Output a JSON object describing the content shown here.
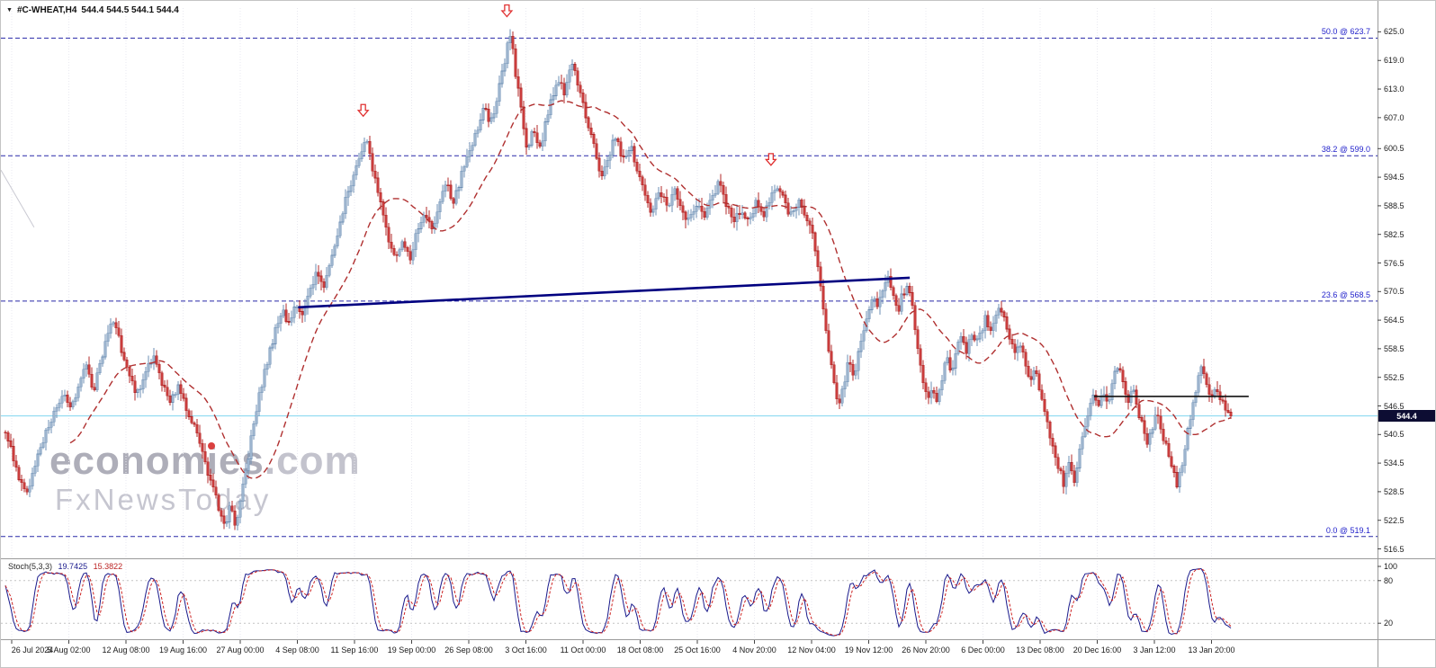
{
  "header": {
    "symbol": "#C-WHEAT,H4",
    "ohlc_text": "544.4 544.5 544.1 544.4",
    "ohlc": {
      "open": "544.4",
      "high": "544.5",
      "low": "544.1",
      "close": "544.4"
    }
  },
  "icons": {
    "symbol_dropdown": "▼"
  },
  "watermark": {
    "brand_pre": "econom",
    "brand_i": "i",
    "brand_post": "es",
    "brand_tld": ".com",
    "subtitle": "FxNewsToday"
  },
  "price_axis": [
    "625.0",
    "619.0",
    "613.0",
    "607.0",
    "600.5",
    "594.5",
    "588.5",
    "582.5",
    "576.5",
    "570.5",
    "564.5",
    "558.5",
    "552.5",
    "546.5",
    "540.5",
    "534.5",
    "528.5",
    "522.5",
    "516.5"
  ],
  "time_axis": [
    "26 Jul 2024",
    "5 Aug 02:00",
    "12 Aug 08:00",
    "19 Aug 16:00",
    "27 Aug 00:00",
    "4 Sep 08:00",
    "11 Sep 16:00",
    "19 Sep 00:00",
    "26 Sep 08:00",
    "3 Oct 16:00",
    "11 Oct 00:00",
    "18 Oct 08:00",
    "25 Oct 16:00",
    "4 Nov 20:00",
    "12 Nov 04:00",
    "19 Nov 12:00",
    "26 Nov 20:00",
    "6 Dec 00:00",
    "13 Dec 08:00",
    "20 Dec 16:00",
    "3 Jan 12:00",
    "13 Jan 20:00"
  ],
  "stoch_panel": {
    "name": "Stoch(5,3,3)",
    "main_value": "19.7425",
    "signal_value": "15.3822",
    "axis": [
      "100",
      "80",
      "20"
    ],
    "levels": [
      80,
      20
    ]
  },
  "current_price": {
    "value": "544.4",
    "price": 544.4
  },
  "colors": {
    "bull": "#cbdae9",
    "bull_border": "#6e8fb4",
    "bear": "#e05050",
    "bear_border": "#b32828",
    "ma": "#b03030",
    "fib": "#2828a8",
    "fib_label": "#2323cc",
    "trend": "#000080",
    "hline": "#111111",
    "bid_line": "#7fd4ef",
    "bid_tag_bg": "#0d0d33",
    "stoch_main": "#1a1a8c",
    "stoch_signal": "#cc2222",
    "grid": "#e9e9f0",
    "sep": "#9a9a9a",
    "axis_text": "#1a1a1a",
    "arrow": "#e03030",
    "watermark": "#aeaeb9"
  },
  "chart_data": {
    "type": "candlestick",
    "symbol": "#C-WHEAT",
    "timeframe": "H4",
    "title": "#C-WHEAT,H4 544.4 544.5 544.1 544.4",
    "visible_range": {
      "start": "26 Jul 2024",
      "end": "13 Jan 20:00"
    },
    "ylim": [
      516.5,
      631.5
    ],
    "last_close": 544.4,
    "price_path_keypoints": [
      [
        0.0,
        541
      ],
      [
        0.006,
        536
      ],
      [
        0.012,
        531
      ],
      [
        0.018,
        529
      ],
      [
        0.025,
        535
      ],
      [
        0.032,
        540
      ],
      [
        0.04,
        545
      ],
      [
        0.047,
        549
      ],
      [
        0.053,
        546
      ],
      [
        0.06,
        551
      ],
      [
        0.066,
        555
      ],
      [
        0.072,
        550
      ],
      [
        0.078,
        556
      ],
      [
        0.084,
        562
      ],
      [
        0.089,
        565
      ],
      [
        0.094,
        559
      ],
      [
        0.1,
        553
      ],
      [
        0.107,
        549
      ],
      [
        0.114,
        553
      ],
      [
        0.121,
        557
      ],
      [
        0.128,
        551
      ],
      [
        0.135,
        547
      ],
      [
        0.141,
        551
      ],
      [
        0.148,
        546
      ],
      [
        0.154,
        542
      ],
      [
        0.16,
        537
      ],
      [
        0.167,
        531
      ],
      [
        0.173,
        526
      ],
      [
        0.179,
        521
      ],
      [
        0.184,
        526
      ],
      [
        0.188,
        521
      ],
      [
        0.192,
        527
      ],
      [
        0.197,
        534
      ],
      [
        0.202,
        542
      ],
      [
        0.208,
        550
      ],
      [
        0.214,
        556
      ],
      [
        0.22,
        562
      ],
      [
        0.226,
        567
      ],
      [
        0.231,
        563
      ],
      [
        0.236,
        568
      ],
      [
        0.242,
        565
      ],
      [
        0.248,
        570
      ],
      [
        0.254,
        575
      ],
      [
        0.259,
        571
      ],
      [
        0.265,
        577
      ],
      [
        0.271,
        583
      ],
      [
        0.277,
        589
      ],
      [
        0.283,
        594
      ],
      [
        0.289,
        599
      ],
      [
        0.295,
        603
      ],
      [
        0.3,
        596
      ],
      [
        0.306,
        589
      ],
      [
        0.312,
        582
      ],
      [
        0.318,
        577
      ],
      [
        0.324,
        581
      ],
      [
        0.33,
        577
      ],
      [
        0.336,
        583
      ],
      [
        0.342,
        587
      ],
      [
        0.348,
        583
      ],
      [
        0.354,
        589
      ],
      [
        0.36,
        593
      ],
      [
        0.366,
        589
      ],
      [
        0.372,
        595
      ],
      [
        0.378,
        600
      ],
      [
        0.384,
        604
      ],
      [
        0.39,
        609
      ],
      [
        0.396,
        606
      ],
      [
        0.402,
        612
      ],
      [
        0.407,
        618
      ],
      [
        0.412,
        625
      ],
      [
        0.416,
        617
      ],
      [
        0.421,
        608
      ],
      [
        0.426,
        600
      ],
      [
        0.431,
        605
      ],
      [
        0.436,
        600
      ],
      [
        0.441,
        606
      ],
      [
        0.446,
        611
      ],
      [
        0.451,
        615
      ],
      [
        0.457,
        612
      ],
      [
        0.462,
        619
      ],
      [
        0.468,
        613
      ],
      [
        0.474,
        607
      ],
      [
        0.48,
        601
      ],
      [
        0.486,
        595
      ],
      [
        0.492,
        599
      ],
      [
        0.498,
        603
      ],
      [
        0.504,
        598
      ],
      [
        0.51,
        601
      ],
      [
        0.516,
        596
      ],
      [
        0.522,
        591
      ],
      [
        0.528,
        587
      ],
      [
        0.534,
        592
      ],
      [
        0.54,
        588
      ],
      [
        0.546,
        592
      ],
      [
        0.552,
        588
      ],
      [
        0.558,
        585
      ],
      [
        0.564,
        589
      ],
      [
        0.57,
        586
      ],
      [
        0.576,
        590
      ],
      [
        0.582,
        593
      ],
      [
        0.588,
        589
      ],
      [
        0.594,
        585
      ],
      [
        0.6,
        588
      ],
      [
        0.606,
        585
      ],
      [
        0.612,
        589
      ],
      [
        0.618,
        586
      ],
      [
        0.624,
        590
      ],
      [
        0.63,
        593
      ],
      [
        0.636,
        589
      ],
      [
        0.642,
        586
      ],
      [
        0.648,
        590
      ],
      [
        0.654,
        586
      ],
      [
        0.66,
        581
      ],
      [
        0.664,
        574
      ],
      [
        0.668,
        566
      ],
      [
        0.672,
        558
      ],
      [
        0.676,
        551
      ],
      [
        0.68,
        546
      ],
      [
        0.684,
        551
      ],
      [
        0.688,
        556
      ],
      [
        0.692,
        552
      ],
      [
        0.696,
        557
      ],
      [
        0.7,
        562
      ],
      [
        0.704,
        566
      ],
      [
        0.708,
        570
      ],
      [
        0.712,
        567
      ],
      [
        0.716,
        571
      ],
      [
        0.72,
        574
      ],
      [
        0.724,
        570
      ],
      [
        0.728,
        566
      ],
      [
        0.732,
        570
      ],
      [
        0.736,
        572
      ],
      [
        0.74,
        567
      ],
      [
        0.744,
        560
      ],
      [
        0.748,
        553
      ],
      [
        0.752,
        548
      ],
      [
        0.756,
        551
      ],
      [
        0.76,
        547
      ],
      [
        0.764,
        552
      ],
      [
        0.768,
        557
      ],
      [
        0.772,
        553
      ],
      [
        0.776,
        558
      ],
      [
        0.78,
        561
      ],
      [
        0.784,
        558
      ],
      [
        0.788,
        561
      ],
      [
        0.792,
        559
      ],
      [
        0.796,
        562
      ],
      [
        0.8,
        565
      ],
      [
        0.804,
        562
      ],
      [
        0.808,
        565
      ],
      [
        0.812,
        567
      ],
      [
        0.816,
        564
      ],
      [
        0.82,
        560
      ],
      [
        0.824,
        557
      ],
      [
        0.828,
        560
      ],
      [
        0.832,
        556
      ],
      [
        0.836,
        552
      ],
      [
        0.84,
        555
      ],
      [
        0.844,
        550
      ],
      [
        0.848,
        545
      ],
      [
        0.852,
        541
      ],
      [
        0.856,
        537
      ],
      [
        0.86,
        533
      ],
      [
        0.864,
        530
      ],
      [
        0.868,
        534
      ],
      [
        0.872,
        531
      ],
      [
        0.876,
        536
      ],
      [
        0.88,
        541
      ],
      [
        0.884,
        546
      ],
      [
        0.888,
        549
      ],
      [
        0.892,
        546
      ],
      [
        0.896,
        550
      ],
      [
        0.9,
        547
      ],
      [
        0.904,
        552
      ],
      [
        0.908,
        555
      ],
      [
        0.912,
        551
      ],
      [
        0.916,
        547
      ],
      [
        0.92,
        551
      ],
      [
        0.924,
        546
      ],
      [
        0.928,
        542
      ],
      [
        0.932,
        538
      ],
      [
        0.936,
        542
      ],
      [
        0.94,
        545
      ],
      [
        0.944,
        541
      ],
      [
        0.948,
        537
      ],
      [
        0.952,
        533
      ],
      [
        0.956,
        530
      ],
      [
        0.96,
        534
      ],
      [
        0.964,
        540
      ],
      [
        0.968,
        546
      ],
      [
        0.972,
        551
      ],
      [
        0.976,
        555
      ],
      [
        0.98,
        552
      ],
      [
        0.984,
        548
      ],
      [
        0.988,
        551
      ],
      [
        0.992,
        548
      ],
      [
        0.996,
        545
      ],
      [
        1.0,
        544.4
      ]
    ],
    "moving_average": {
      "type": "SMA-dashed",
      "approx_period": 24,
      "color": "#b03030"
    },
    "fibonacci_levels": [
      {
        "label": "50.0 @ 623.7",
        "ratio": "50.0",
        "price": 623.7
      },
      {
        "label": "38.2 @ 599.0",
        "ratio": "38.2",
        "price": 599.0
      },
      {
        "label": "23.6 @ 568.5",
        "ratio": "23.6",
        "price": 568.5
      },
      {
        "label": "0.0 @ 519.1",
        "ratio": "0.0",
        "price": 519.1
      }
    ],
    "trendline": {
      "from": {
        "time_frac": 0.242,
        "price": 567.2
      },
      "to": {
        "time_frac": 0.74,
        "price": 573.4
      }
    },
    "horizontal_segment": {
      "price": 548.5,
      "from_frac": 0.89,
      "to_frac": 1.016
    },
    "sell_arrows": [
      {
        "time_frac": 0.295,
        "price": 607.3
      },
      {
        "time_frac": 0.412,
        "price": 628.2
      },
      {
        "time_frac": 0.627,
        "price": 597.0
      }
    ],
    "stray_segment": {
      "from": {
        "time_frac": 0.0,
        "price": 596.0
      },
      "to": {
        "time_frac": 0.027,
        "price": 584.0
      }
    },
    "stochastic": {
      "type": "Stoch",
      "params": [
        5,
        3,
        3
      ],
      "last_main": 19.7425,
      "last_signal": 15.3822,
      "scale": [
        0,
        100
      ],
      "levels": [
        80,
        20
      ]
    }
  }
}
